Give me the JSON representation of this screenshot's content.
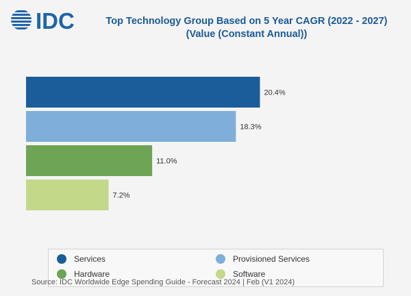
{
  "logo": {
    "text": "IDC"
  },
  "title": {
    "line1": "Top Technology Group Based on 5 Year CAGR (2022 - 2027)",
    "line2": "(Value (Constant Annual))"
  },
  "colors": {
    "services": "#1a5d9a",
    "provisioned_services": "#7eaed9",
    "hardware": "#6ea455",
    "software": "#c4d88a",
    "title": "#1a5a96"
  },
  "chart_data": {
    "type": "bar",
    "orientation": "horizontal",
    "categories": [
      "Services",
      "Provisioned Services",
      "Hardware",
      "Software"
    ],
    "values": [
      20.4,
      18.3,
      11.0,
      7.2
    ],
    "labels": [
      "20.4%",
      "18.3%",
      "11.0%",
      "7.2%"
    ],
    "title": "Top Technology Group Based on 5 Year CAGR (2022 - 2027) (Value (Constant Annual))",
    "xlabel": "",
    "ylabel": "",
    "xlim": [
      0,
      23
    ],
    "grid": false,
    "legend_position": "bottom"
  },
  "legend": {
    "items": [
      {
        "label": "Services",
        "color": "#1a5d9a"
      },
      {
        "label": "Provisioned Services",
        "color": "#7eaed9"
      },
      {
        "label": "Hardware",
        "color": "#6ea455"
      },
      {
        "label": "Software",
        "color": "#c4d88a"
      }
    ]
  },
  "source": "Source: IDC Worldwide Edge Spending Guide - Forecast 2024 | Feb (V1 2024)"
}
